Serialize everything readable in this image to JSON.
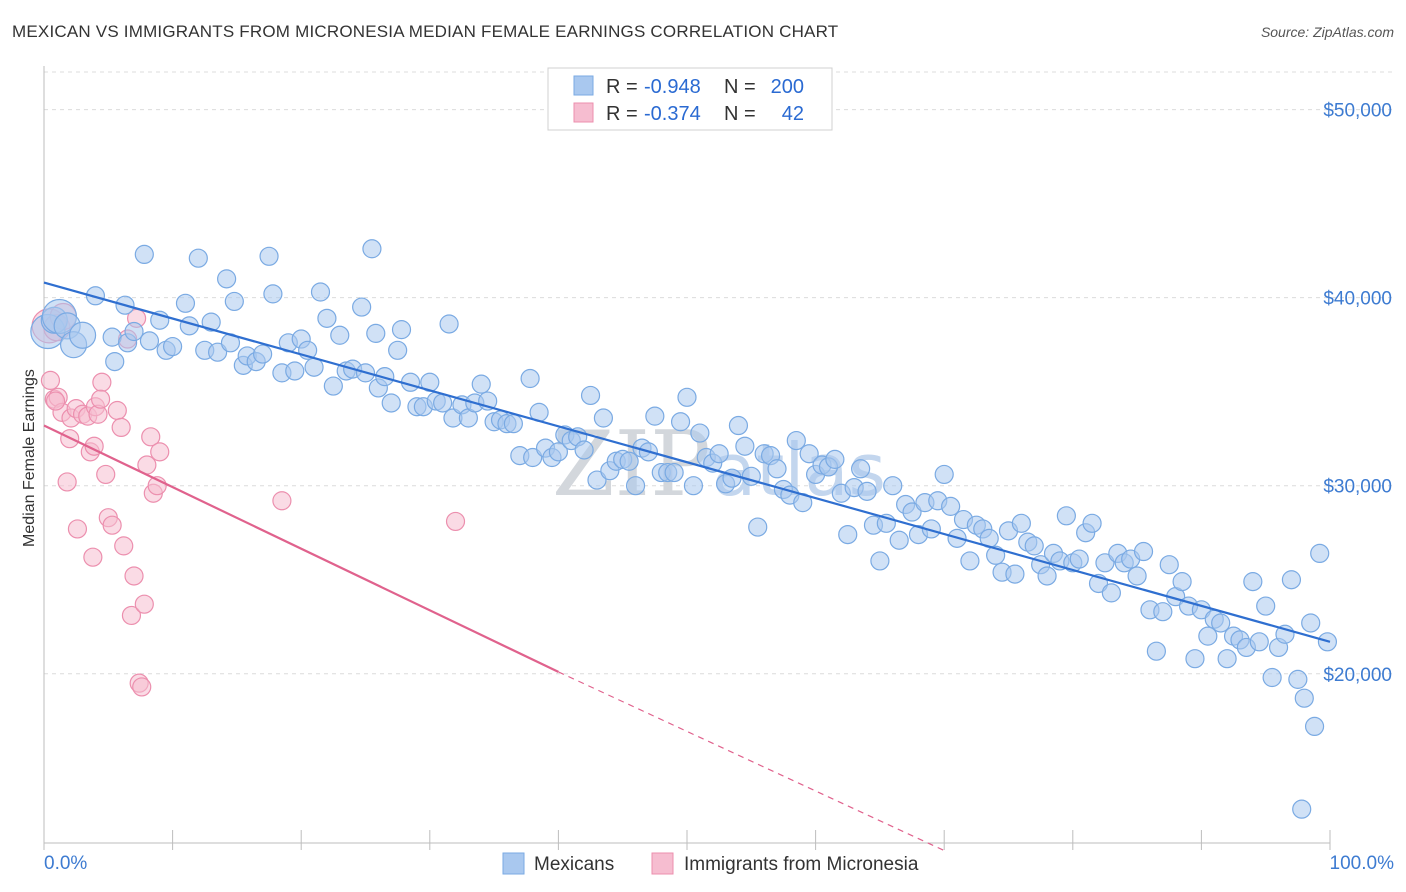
{
  "title": "MEXICAN VS IMMIGRANTS FROM MICRONESIA MEDIAN FEMALE EARNINGS CORRELATION CHART",
  "source": "Source: ZipAtlas.com",
  "watermark": {
    "zip": "ZIP",
    "atlas": "atlas"
  },
  "legend": {
    "r_label": "R =",
    "n_label": "N =",
    "series": [
      {
        "name": "Mexicans",
        "r": "-0.948",
        "n": "200",
        "color": "#7aaae3",
        "fill": "#a9c8ef"
      },
      {
        "name": "Immigrants from Micronesia",
        "r": "-0.374",
        "n": "42",
        "color": "#ec8fae",
        "fill": "#f6bdd0"
      }
    ]
  },
  "colors": {
    "blue_line": "#2f6fd0",
    "pink_line": "#e0628d",
    "grid": "#dcdcdc"
  },
  "chart_data": {
    "type": "scatter",
    "title": "MEXICAN VS IMMIGRANTS FROM MICRONESIA MEDIAN FEMALE EARNINGS CORRELATION CHART",
    "xlabel": "",
    "ylabel": "Median Female Earnings",
    "xlim": [
      0,
      100
    ],
    "ylim": [
      11000,
      52000
    ],
    "x_tick_labels": [
      "0.0%",
      "100.0%"
    ],
    "y_ticks": [
      20000,
      30000,
      40000,
      50000
    ],
    "y_tick_labels": [
      "$20,000",
      "$30,000",
      "$40,000",
      "$50,000"
    ],
    "series": [
      {
        "name": "Mexicans",
        "trend": {
          "x0": 0,
          "y0": 40800,
          "x1": 100,
          "y1": 21700
        },
        "points": [
          [
            0.3,
            38200,
            3
          ],
          [
            0.8,
            38800,
            2
          ],
          [
            1.2,
            39000,
            3
          ],
          [
            1.8,
            38500,
            2
          ],
          [
            2.3,
            37500,
            2
          ],
          [
            3.0,
            38000,
            2
          ],
          [
            4.0,
            40100,
            1
          ],
          [
            5.3,
            37900,
            1
          ],
          [
            5.5,
            36600,
            1
          ],
          [
            6.5,
            37600,
            1
          ],
          [
            7.0,
            38200,
            1
          ],
          [
            6.3,
            39600,
            1
          ],
          [
            8.2,
            37700,
            1
          ],
          [
            9.0,
            38800,
            1
          ],
          [
            9.5,
            37200,
            1
          ],
          [
            10.0,
            37400,
            1
          ],
          [
            7.8,
            42300,
            1
          ],
          [
            11.3,
            38500,
            1
          ],
          [
            11.0,
            39700,
            1
          ],
          [
            12.5,
            37200,
            1
          ],
          [
            12.0,
            42100,
            1
          ],
          [
            13.0,
            38700,
            1
          ],
          [
            13.5,
            37100,
            1
          ],
          [
            14.2,
            41000,
            1
          ],
          [
            14.5,
            37600,
            1
          ],
          [
            14.8,
            39800,
            1
          ],
          [
            15.5,
            36400,
            1
          ],
          [
            15.8,
            36900,
            1
          ],
          [
            16.5,
            36600,
            1
          ],
          [
            17.0,
            37000,
            1
          ],
          [
            17.5,
            42200,
            1
          ],
          [
            17.8,
            40200,
            1
          ],
          [
            18.5,
            36000,
            1
          ],
          [
            19.0,
            37600,
            1
          ],
          [
            19.5,
            36100,
            1
          ],
          [
            20.0,
            37800,
            1
          ],
          [
            20.5,
            37200,
            1
          ],
          [
            21.0,
            36300,
            1
          ],
          [
            21.5,
            40300,
            1
          ],
          [
            22.0,
            38900,
            1
          ],
          [
            22.5,
            35300,
            1
          ],
          [
            23.0,
            38000,
            1
          ],
          [
            23.5,
            36100,
            1
          ],
          [
            24.0,
            36200,
            1
          ],
          [
            25.0,
            36000,
            1
          ],
          [
            25.8,
            38100,
            1
          ],
          [
            25.5,
            42600,
            1
          ],
          [
            24.7,
            39500,
            1
          ],
          [
            26.0,
            35200,
            1
          ],
          [
            26.5,
            35800,
            1
          ],
          [
            27.0,
            34400,
            1
          ],
          [
            27.5,
            37200,
            1
          ],
          [
            27.8,
            38300,
            1
          ],
          [
            28.5,
            35500,
            1
          ],
          [
            29.0,
            34200,
            1
          ],
          [
            29.5,
            34200,
            1
          ],
          [
            30.0,
            35500,
            1
          ],
          [
            30.5,
            34500,
            1
          ],
          [
            31.0,
            34400,
            1
          ],
          [
            31.5,
            38600,
            1
          ],
          [
            31.8,
            33600,
            1
          ],
          [
            32.5,
            34300,
            1
          ],
          [
            33.0,
            33600,
            1
          ],
          [
            33.5,
            34400,
            1
          ],
          [
            34.0,
            35400,
            1
          ],
          [
            34.5,
            34500,
            1
          ],
          [
            35.0,
            33400,
            1
          ],
          [
            35.5,
            33500,
            1
          ],
          [
            36.0,
            33300,
            1
          ],
          [
            36.5,
            33300,
            1
          ],
          [
            37.0,
            31600,
            1
          ],
          [
            37.8,
            35700,
            1
          ],
          [
            38.0,
            31500,
            1
          ],
          [
            38.5,
            33900,
            1
          ],
          [
            39.0,
            32000,
            1
          ],
          [
            39.5,
            31500,
            1
          ],
          [
            40.0,
            31800,
            1
          ],
          [
            40.5,
            32700,
            1
          ],
          [
            41.0,
            32400,
            1
          ],
          [
            41.5,
            32600,
            1
          ],
          [
            42.0,
            31900,
            1
          ],
          [
            42.5,
            34800,
            1
          ],
          [
            43.0,
            30300,
            1
          ],
          [
            43.5,
            33600,
            1
          ],
          [
            44.0,
            30800,
            1
          ],
          [
            44.5,
            31300,
            1
          ],
          [
            45.0,
            31400,
            1
          ],
          [
            45.5,
            31300,
            1
          ],
          [
            46.0,
            30000,
            1
          ],
          [
            46.5,
            32000,
            1
          ],
          [
            47.0,
            31800,
            1
          ],
          [
            47.5,
            33700,
            1
          ],
          [
            48.0,
            30700,
            1
          ],
          [
            48.5,
            30700,
            1
          ],
          [
            49.0,
            30700,
            1
          ],
          [
            49.5,
            33400,
            1
          ],
          [
            50.0,
            34700,
            1
          ],
          [
            50.5,
            30000,
            1
          ],
          [
            51.0,
            32800,
            1
          ],
          [
            51.5,
            31500,
            1
          ],
          [
            52.0,
            31200,
            1
          ],
          [
            52.5,
            31700,
            1
          ],
          [
            53.0,
            30100,
            1
          ],
          [
            53.5,
            30400,
            1
          ],
          [
            54.0,
            33200,
            1
          ],
          [
            54.5,
            32100,
            1
          ],
          [
            55.0,
            30500,
            1
          ],
          [
            55.5,
            27800,
            1
          ],
          [
            56.0,
            31700,
            1
          ],
          [
            56.5,
            31600,
            1
          ],
          [
            57.0,
            30900,
            1
          ],
          [
            57.5,
            29800,
            1
          ],
          [
            58.0,
            29500,
            1
          ],
          [
            58.5,
            32400,
            1
          ],
          [
            59.0,
            29100,
            1
          ],
          [
            59.5,
            31700,
            1
          ],
          [
            60.0,
            30600,
            1
          ],
          [
            60.5,
            31100,
            1
          ],
          [
            61.0,
            31000,
            1
          ],
          [
            61.5,
            31400,
            1
          ],
          [
            62.0,
            29600,
            1
          ],
          [
            62.5,
            27400,
            1
          ],
          [
            63.0,
            29900,
            1
          ],
          [
            63.5,
            30900,
            1
          ],
          [
            64.0,
            29700,
            1
          ],
          [
            64.5,
            27900,
            1
          ],
          [
            65.0,
            26000,
            1
          ],
          [
            65.5,
            28000,
            1
          ],
          [
            66.0,
            30000,
            1
          ],
          [
            66.5,
            27100,
            1
          ],
          [
            67.0,
            29000,
            1
          ],
          [
            67.5,
            28600,
            1
          ],
          [
            68.0,
            27400,
            1
          ],
          [
            68.5,
            29100,
            1
          ],
          [
            69.0,
            27700,
            1
          ],
          [
            69.5,
            29200,
            1
          ],
          [
            70.0,
            30600,
            1
          ],
          [
            70.5,
            28900,
            1
          ],
          [
            71.0,
            27200,
            1
          ],
          [
            71.5,
            28200,
            1
          ],
          [
            72.0,
            26000,
            1
          ],
          [
            72.5,
            27900,
            1
          ],
          [
            73.0,
            27700,
            1
          ],
          [
            73.5,
            27200,
            1
          ],
          [
            74.0,
            26300,
            1
          ],
          [
            74.5,
            25400,
            1
          ],
          [
            75.0,
            27600,
            1
          ],
          [
            75.5,
            25300,
            1
          ],
          [
            76.0,
            28000,
            1
          ],
          [
            76.5,
            27000,
            1
          ],
          [
            77.0,
            26800,
            1
          ],
          [
            77.5,
            25800,
            1
          ],
          [
            78.0,
            25200,
            1
          ],
          [
            78.5,
            26400,
            1
          ],
          [
            79.0,
            26000,
            1
          ],
          [
            79.5,
            28400,
            1
          ],
          [
            80.0,
            25900,
            1
          ],
          [
            80.5,
            26100,
            1
          ],
          [
            81.0,
            27500,
            1
          ],
          [
            81.5,
            28000,
            1
          ],
          [
            82.0,
            24800,
            1
          ],
          [
            82.5,
            25900,
            1
          ],
          [
            83.0,
            24300,
            1
          ],
          [
            83.5,
            26400,
            1
          ],
          [
            84.0,
            25900,
            1
          ],
          [
            84.5,
            26100,
            1
          ],
          [
            85.0,
            25200,
            1
          ],
          [
            85.5,
            26500,
            1
          ],
          [
            86.0,
            23400,
            1
          ],
          [
            86.5,
            21200,
            1
          ],
          [
            87.0,
            23300,
            1
          ],
          [
            87.5,
            25800,
            1
          ],
          [
            88.0,
            24100,
            1
          ],
          [
            88.5,
            24900,
            1
          ],
          [
            89.0,
            23600,
            1
          ],
          [
            89.5,
            20800,
            1
          ],
          [
            90.0,
            23400,
            1
          ],
          [
            90.5,
            22000,
            1
          ],
          [
            91.0,
            22900,
            1
          ],
          [
            91.5,
            22700,
            1
          ],
          [
            92.0,
            20800,
            1
          ],
          [
            92.5,
            22000,
            1
          ],
          [
            93.0,
            21800,
            1
          ],
          [
            93.5,
            21400,
            1
          ],
          [
            94.0,
            24900,
            1
          ],
          [
            94.5,
            21700,
            1
          ],
          [
            95.0,
            23600,
            1
          ],
          [
            95.5,
            19800,
            1
          ],
          [
            96.0,
            21400,
            1
          ],
          [
            96.5,
            22100,
            1
          ],
          [
            97.0,
            25000,
            1
          ],
          [
            97.5,
            19700,
            1
          ],
          [
            98.0,
            18700,
            1
          ],
          [
            98.5,
            22700,
            1
          ],
          [
            98.8,
            17200,
            1
          ],
          [
            99.2,
            26400,
            1
          ],
          [
            99.8,
            21700,
            1
          ],
          [
            97.8,
            12800,
            1
          ]
        ]
      },
      {
        "name": "Immigrants from Micronesia",
        "trend": {
          "x0": 0,
          "y0": 33200,
          "x1": 40,
          "y1": 20100
        },
        "trend_dashed": {
          "x0": 40,
          "y0": 20100,
          "x1": 70,
          "y1": 10600
        },
        "points": [
          [
            0.4,
            38500,
            3
          ],
          [
            1.0,
            38400,
            2
          ],
          [
            1.5,
            39000,
            2
          ],
          [
            0.5,
            35600,
            1
          ],
          [
            0.8,
            34600,
            1
          ],
          [
            1.1,
            34700,
            1
          ],
          [
            1.4,
            33900,
            1
          ],
          [
            0.9,
            34500,
            1
          ],
          [
            2.0,
            32500,
            1
          ],
          [
            1.8,
            30200,
            1
          ],
          [
            2.1,
            33600,
            1
          ],
          [
            2.5,
            34100,
            1
          ],
          [
            3.0,
            33800,
            1
          ],
          [
            2.6,
            27700,
            1
          ],
          [
            3.4,
            33700,
            1
          ],
          [
            3.6,
            31800,
            1
          ],
          [
            4.0,
            34200,
            1
          ],
          [
            4.2,
            33800,
            1
          ],
          [
            4.5,
            35500,
            1
          ],
          [
            3.8,
            26200,
            1
          ],
          [
            3.9,
            32100,
            1
          ],
          [
            4.8,
            30600,
            1
          ],
          [
            5.0,
            28300,
            1
          ],
          [
            5.3,
            27900,
            1
          ],
          [
            5.7,
            34000,
            1
          ],
          [
            6.0,
            33100,
            1
          ],
          [
            6.2,
            26800,
            1
          ],
          [
            6.5,
            37800,
            1
          ],
          [
            7.0,
            25200,
            1
          ],
          [
            6.8,
            23100,
            1
          ],
          [
            7.2,
            38900,
            1
          ],
          [
            7.8,
            23700,
            1
          ],
          [
            8.0,
            31100,
            1
          ],
          [
            8.3,
            32600,
            1
          ],
          [
            8.5,
            29600,
            1
          ],
          [
            8.8,
            30000,
            1
          ],
          [
            9.0,
            31800,
            1
          ],
          [
            7.4,
            19500,
            1
          ],
          [
            7.6,
            19300,
            1
          ],
          [
            18.5,
            29200,
            1
          ],
          [
            32.0,
            28100,
            1
          ],
          [
            4.4,
            34600,
            1
          ]
        ]
      }
    ]
  }
}
